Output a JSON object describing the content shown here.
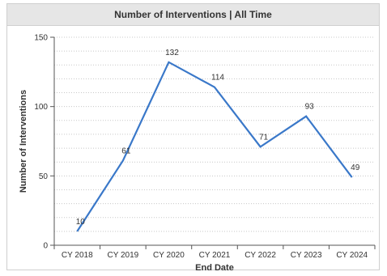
{
  "chart_data": {
    "type": "line",
    "title": "Number of Interventions | All Time",
    "xlabel": "End Date",
    "ylabel": "Number of Interventions",
    "categories": [
      "CY 2018",
      "CY 2019",
      "CY 2020",
      "CY 2021",
      "CY 2022",
      "CY 2023",
      "CY 2024"
    ],
    "series": [
      {
        "values": [
          10,
          61,
          132,
          114,
          71,
          93,
          49
        ]
      }
    ],
    "ylim": [
      0,
      150
    ],
    "yticks": [
      0,
      50,
      100,
      150
    ],
    "grid": "dotted-horizontal",
    "line_color": "#3a78c9"
  }
}
